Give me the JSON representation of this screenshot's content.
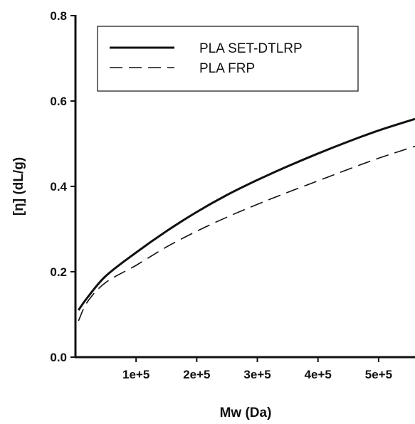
{
  "chart_data": {
    "type": "line",
    "title": "",
    "xlabel": "Mw (Da)",
    "ylabel": "[η] (dL/g)",
    "xlim": [
      0,
      560000
    ],
    "ylim": [
      0,
      0.8
    ],
    "x_ticks": [
      100000,
      200000,
      300000,
      400000,
      500000
    ],
    "x_tick_labels": [
      "1e+5",
      "2e+5",
      "3e+5",
      "4e+5",
      "5e+5"
    ],
    "y_ticks": [
      0.0,
      0.2,
      0.4,
      0.6,
      0.8
    ],
    "y_tick_labels": [
      "0.0",
      "0.2",
      "0.4",
      "0.6",
      "0.8"
    ],
    "grid": false,
    "legend_position": "top-left",
    "series": [
      {
        "name": "PLA SET-DTLRP",
        "style": "solid",
        "color": "#111111",
        "x": [
          5000,
          20000,
          50000,
          100000,
          150000,
          200000,
          250000,
          300000,
          350000,
          400000,
          450000,
          500000,
          560000
        ],
        "y": [
          0.11,
          0.14,
          0.19,
          0.245,
          0.295,
          0.34,
          0.38,
          0.415,
          0.447,
          0.477,
          0.505,
          0.531,
          0.558
        ]
      },
      {
        "name": "PLA FRP",
        "style": "dashed",
        "color": "#111111",
        "x": [
          5000,
          20000,
          50000,
          100000,
          150000,
          200000,
          250000,
          300000,
          350000,
          400000,
          450000,
          500000,
          560000
        ],
        "y": [
          0.085,
          0.13,
          0.175,
          0.215,
          0.258,
          0.295,
          0.328,
          0.358,
          0.386,
          0.413,
          0.44,
          0.466,
          0.494
        ]
      }
    ]
  }
}
